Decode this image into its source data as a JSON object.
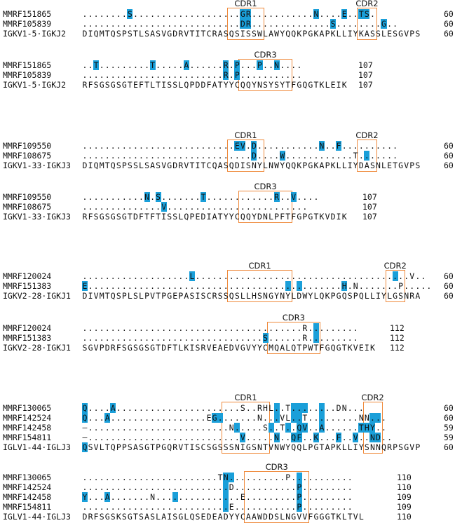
{
  "blocks": [
    {
      "rows": [
        {
          "label": "MMRF151865",
          "seq": "........S...................GR...........N....E..TS.",
          "hl": [
            8,
            28,
            29,
            41,
            46,
            49,
            50
          ],
          "num": "60"
        },
        {
          "label": "MMRF105839",
          "seq": "............................DR..............S........G..",
          "hl": [
            28,
            29,
            44,
            53
          ],
          "num": "60"
        },
        {
          "label": "IGKV1-5·IGKJ2",
          "seq": "DIQMTQSPSTLSASVGDRVTITCRASQSISSWLAWYQQKPGKAPKLLIYKASSLESGVPS",
          "hl": [],
          "num": "60"
        }
      ],
      "boxes": [
        {
          "title": "CDR1",
          "start": 26,
          "end": 31
        },
        {
          "title": "CDR2",
          "start": 49,
          "end": 51
        }
      ]
    },
    {
      "rows": [
        {
          "label": "MMRF151865",
          "seq": "..T.........T.....A......R.P...P..N....",
          "hl": [
            2,
            12,
            18,
            25,
            27,
            31,
            34
          ],
          "num": "107"
        },
        {
          "label": "MMRF105839",
          "seq": ".........................R.P...........",
          "hl": [
            25,
            27
          ],
          "num": "107"
        },
        {
          "label": "IGKV1-5·IGKJ2",
          "seq": "RFSGSGSGTEFTLTISSLQPDDFATYYCQQYNSYSYTFGQGTKLEIK",
          "hl": [],
          "num": "107"
        }
      ],
      "boxes": [
        {
          "title": "CDR3",
          "start": 28,
          "end": 36
        }
      ]
    },
    {
      "rows": [
        {
          "label": "MMRF109550",
          "seq": "...........................EV.D...........N..F..........",
          "hl": [
            27,
            28,
            30,
            42,
            45
          ],
          "num": "60"
        },
        {
          "label": "MMRF108675",
          "seq": "..............................D....W............T.......",
          "hl": [
            30,
            35,
            50
          ],
          "num": "60"
        },
        {
          "label": "IGKV1-33·IGKJ3",
          "seq": "DIQMTQSPSSLSASVGDRVTITCQASQDISNYLNWYQQKPGKAPKLLIYDASNLETGVPS",
          "hl": [],
          "num": "60"
        }
      ],
      "boxes": [
        {
          "title": "CDR1",
          "start": 26,
          "end": 31
        },
        {
          "title": "CDR2",
          "start": 49,
          "end": 51
        }
      ]
    },
    {
      "rows": [
        {
          "label": "MMRF109550",
          "seq": "...........N.S.......T............R..V....",
          "hl": [
            11,
            13,
            21,
            34,
            37
          ],
          "num": "107"
        },
        {
          "label": "MMRF108675",
          "seq": "..............V.........................",
          "hl": [
            14
          ],
          "num": "107"
        },
        {
          "label": "IGKV1-33·IGKJ3",
          "seq": "RFSGSGSGTDFTFTISSLQPEDIATYYCQQYDNLPFTFGPGTKVDIK",
          "hl": [],
          "num": "107"
        }
      ],
      "boxes": [
        {
          "title": "CDR3",
          "start": 28,
          "end": 36
        }
      ]
    },
    {
      "rows": [
        {
          "label": "MMRF120024",
          "seq": "...................L......................................V..",
          "hl": [
            19,
            55
          ],
          "num": "60"
        },
        {
          "label": "MMRF151383",
          "seq": "E.............................................H.N.......P.....",
          "hl": [
            0,
            36,
            38,
            46
          ],
          "num": "60"
        },
        {
          "label": "IGKV2-28·IGKJ1",
          "seq": "DIVMTQSPLSLPVTPGEPASISCRSSQSLLHSNGYNYLDWYLQKPGQSPQLLIYLGSNRA",
          "hl": [],
          "num": "60"
        }
      ],
      "boxes": [
        {
          "title": "CDR1",
          "start": 26,
          "end": 36
        },
        {
          "title": "CDR2",
          "start": 54,
          "end": 56
        }
      ]
    },
    {
      "rows": [
        {
          "label": "MMRF120024",
          "seq": ".......................................R.........",
          "hl": [
            41
          ],
          "num": "112"
        },
        {
          "label": "MMRF151383",
          "seq": "................................S......R.........",
          "hl": [
            32,
            41
          ],
          "num": "112"
        },
        {
          "label": "IGKV2-28·IGKJ1",
          "seq": "SGVPDRFSGSGSGTDFTLKISRVEAEDVGVYYCMQALQTPWTFGQGTKVEIK",
          "hl": [],
          "num": "112"
        }
      ],
      "boxes": [
        {
          "title": "CDR3",
          "start": 33,
          "end": 41
        }
      ]
    },
    {
      "rows": [
        {
          "label": "MMRF130065",
          "seq": "Q....A......................S..RHL..T........DN...",
          "hl": [
            0,
            5,
            34,
            37,
            38,
            39,
            42,
            51,
            52
          ],
          "num": "60"
        },
        {
          "label": "MMRF142524",
          "seq": "Q...A.................EG.......N...VL..T.........NN...",
          "hl": [
            0,
            4,
            23,
            24,
            34,
            37,
            38,
            42,
            51,
            52
          ],
          "num": "60"
        },
        {
          "label": "MMRF142458",
          "seq": "–.........................N.....S..T..QV..A......THY..",
          "hl": [
            27,
            33,
            36,
            38,
            39,
            42,
            49,
            50,
            51
          ],
          "num": "59"
        },
        {
          "label": "MMRF154811",
          "seq": "–...........................V.....N..QF..K...F..V..ND..",
          "hl": [
            28,
            34,
            37,
            38,
            41,
            45,
            48,
            51,
            52
          ],
          "num": "59"
        },
        {
          "label": "IGLV1-44·IGLJ3",
          "seq": "QSVLTQPPSASGTPGQRVTISCSGSSSNIGSNTVNWYQQLPGTAPKLLIYSNNQRPSGVP",
          "hl": [
            0
          ],
          "num": "60"
        }
      ],
      "boxes": [
        {
          "title": "CDR1",
          "start": 25,
          "end": 32
        },
        {
          "title": "CDR2",
          "start": 50,
          "end": 52
        }
      ]
    },
    {
      "rows": [
        {
          "label": "MMRF130065",
          "seq": "........................TN..........P...........",
          "hl": [
            25,
            26,
            38
          ],
          "num": "110"
        },
        {
          "label": "MMRF142524",
          "seq": "..........................D...........P.........",
          "hl": [
            25,
            38
          ],
          "num": "110"
        },
        {
          "label": "MMRF142458",
          "seq": "Y...A.......N...............E.........P.........",
          "hl": [
            0,
            4,
            16,
            25,
            38
          ],
          "num": "109"
        },
        {
          "label": "MMRF154811",
          "seq": "..........................E...........P.........",
          "hl": [
            25,
            38
          ],
          "num": "109"
        },
        {
          "label": "IGLV1-44·IGLJ3",
          "seq": "DRFSGSKSGTSASLAISGLQSEDEADYYCAAWDDSLNGVVFGGGTKLTVL",
          "hl": [],
          "num": "110"
        }
      ],
      "boxes": [
        {
          "title": "CDR3",
          "start": 29,
          "end": 39
        }
      ]
    }
  ]
}
